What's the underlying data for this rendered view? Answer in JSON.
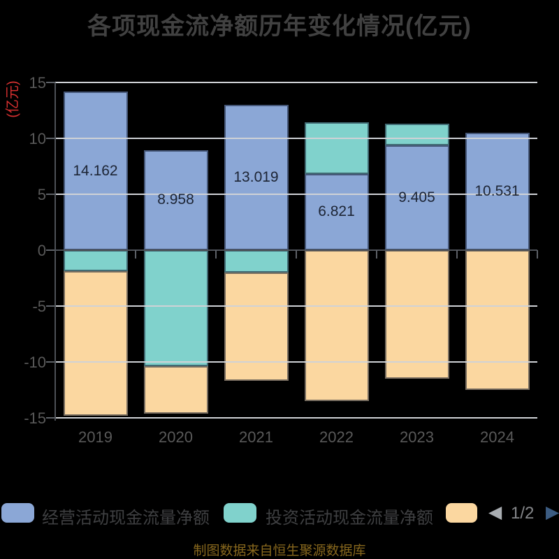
{
  "title": "各项现金流净额历年变化情况(亿元)",
  "y_axis": {
    "unit_label": "(亿元)",
    "unit_color": "#d63030",
    "ticks": [
      15,
      10,
      5,
      0,
      -5,
      -10,
      -15
    ]
  },
  "legend": {
    "items": [
      {
        "label": "经营活动现金流量净额",
        "color": "#8BA7D6"
      },
      {
        "label": "投资活动现金流量净额",
        "color": "#80D2CC"
      },
      {
        "label": "",
        "color": "#FBD7A0"
      }
    ],
    "pagination": {
      "label": "1/2",
      "prev_glyph": "◀",
      "next_glyph": "▶",
      "prev_color": "#a9adb2",
      "next_color": "#3c5c82",
      "label_color": "#85878a"
    }
  },
  "source_note": "制图数据来自恒生聚源数据库",
  "chart_data": {
    "type": "bar",
    "stacked": true,
    "title": "各项现金流净额历年变化情况(亿元)",
    "categories": [
      "2019",
      "2020",
      "2021",
      "2022",
      "2023",
      "2024"
    ],
    "series": [
      {
        "name": "经营活动现金流量净额",
        "color": "#8BA7D6",
        "values": [
          14.162,
          8.958,
          13.019,
          6.821,
          9.405,
          10.531
        ],
        "data_labels": [
          "14.162",
          "8.958",
          "13.019",
          "6.821",
          "9.405",
          "10.531"
        ]
      },
      {
        "name": "投资活动现金流量净额",
        "color": "#80D2CC",
        "values": [
          -1.9,
          -10.4,
          -2.0,
          4.6,
          1.9,
          0
        ]
      },
      {
        "name": "",
        "color": "#FBD7A0",
        "values": [
          -12.9,
          -4.2,
          -9.7,
          -13.5,
          -11.5,
          -12.5
        ]
      }
    ],
    "ylim": [
      -15,
      15
    ],
    "ytick_step": 5,
    "grid": true,
    "legend_position": "bottom"
  }
}
